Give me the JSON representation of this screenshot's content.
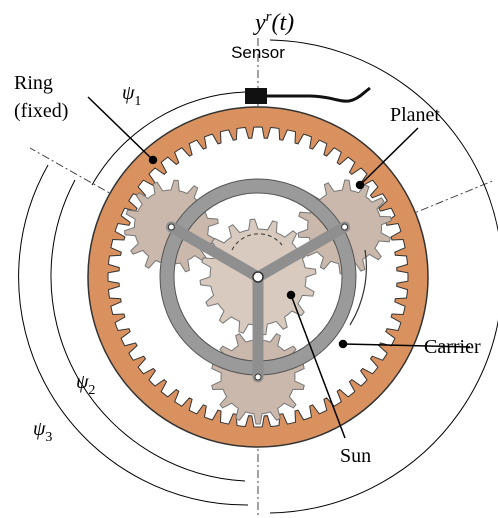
{
  "labels": {
    "output": {
      "symbol": "y",
      "sup": "r",
      "arg": "(t)"
    },
    "sensor": "Sensor",
    "ring": [
      "Ring",
      "(fixed)"
    ],
    "planet": "Planet",
    "carrier": "Carrier",
    "sun": "Sun",
    "psi1": {
      "symbol": "ψ",
      "sub": "1"
    },
    "psi2": {
      "symbol": "ψ",
      "sub": "2"
    },
    "psi3": {
      "symbol": "ψ",
      "sub": "3"
    }
  }
}
